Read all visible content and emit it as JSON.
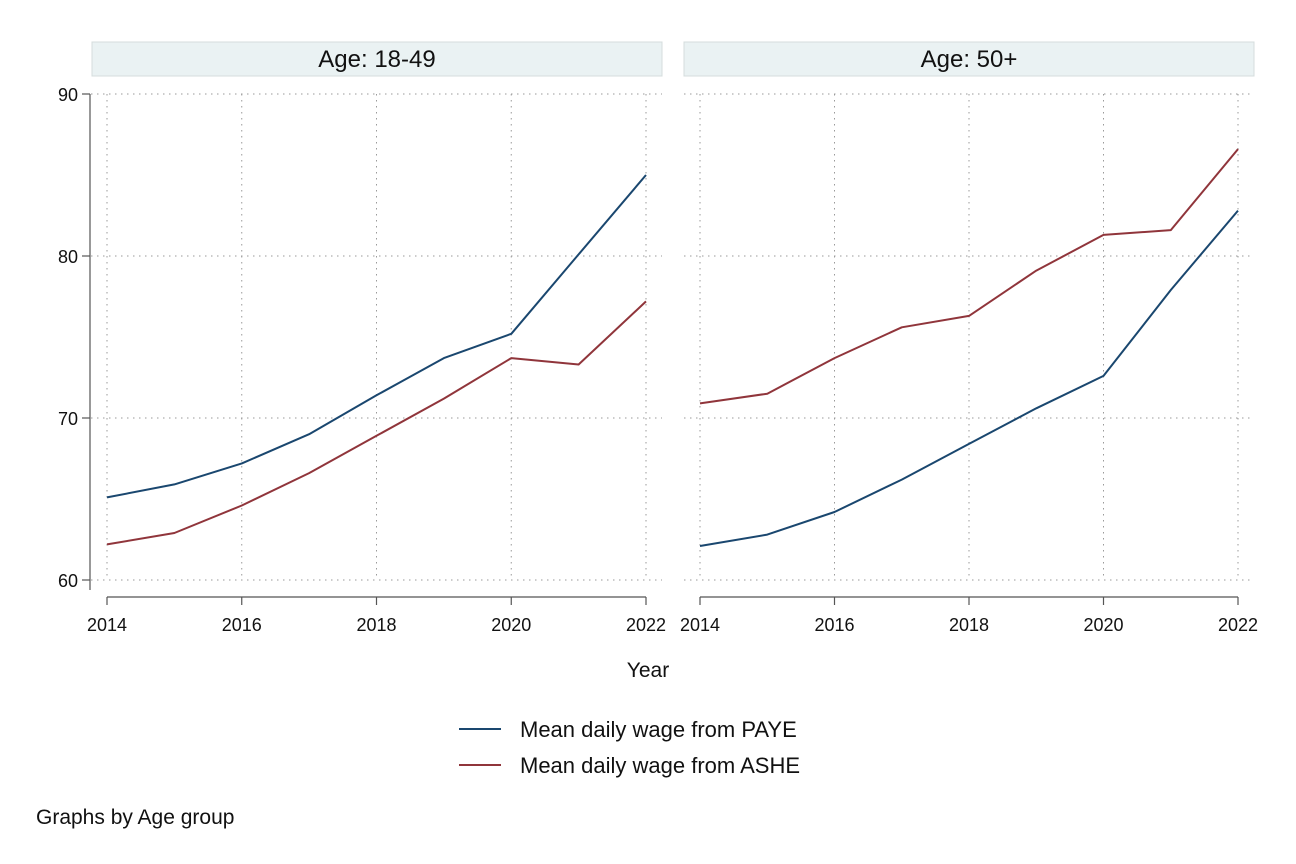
{
  "chart_data": {
    "type": "line",
    "xlabel": "Year",
    "note": "Graphs by Age group",
    "x_ticks": [
      2014,
      2016,
      2018,
      2020,
      2022
    ],
    "y_ticks": [
      60,
      70,
      80,
      90
    ],
    "xlim": [
      2014,
      2022
    ],
    "ylim": [
      59,
      90
    ],
    "grid": true,
    "legend_position": "bottom",
    "series_info": [
      {
        "name": "Mean daily wage from PAYE",
        "color": "#1a476f"
      },
      {
        "name": "Mean daily wage from ASHE",
        "color": "#90353b"
      }
    ],
    "panels": [
      {
        "title": "Age: 18-49",
        "x": [
          2014,
          2015,
          2016,
          2017,
          2018,
          2019,
          2020,
          2021,
          2022
        ],
        "series": [
          {
            "name": "Mean daily wage from PAYE",
            "values": [
              65.1,
              65.9,
              67.2,
              69.0,
              71.4,
              73.7,
              75.2,
              80.1,
              85.0
            ]
          },
          {
            "name": "Mean daily wage from ASHE",
            "values": [
              62.2,
              62.9,
              64.6,
              66.6,
              68.9,
              71.2,
              73.7,
              73.3,
              77.2
            ]
          }
        ]
      },
      {
        "title": "Age: 50+",
        "x": [
          2014,
          2015,
          2016,
          2017,
          2018,
          2019,
          2020,
          2021,
          2022
        ],
        "series": [
          {
            "name": "Mean daily wage from PAYE",
            "values": [
              62.1,
              62.8,
              64.2,
              66.2,
              68.4,
              70.6,
              72.6,
              77.9,
              82.8
            ]
          },
          {
            "name": "Mean daily wage from ASHE",
            "values": [
              70.9,
              71.5,
              73.7,
              75.6,
              76.3,
              79.1,
              81.3,
              81.6,
              86.6
            ]
          }
        ]
      }
    ]
  }
}
